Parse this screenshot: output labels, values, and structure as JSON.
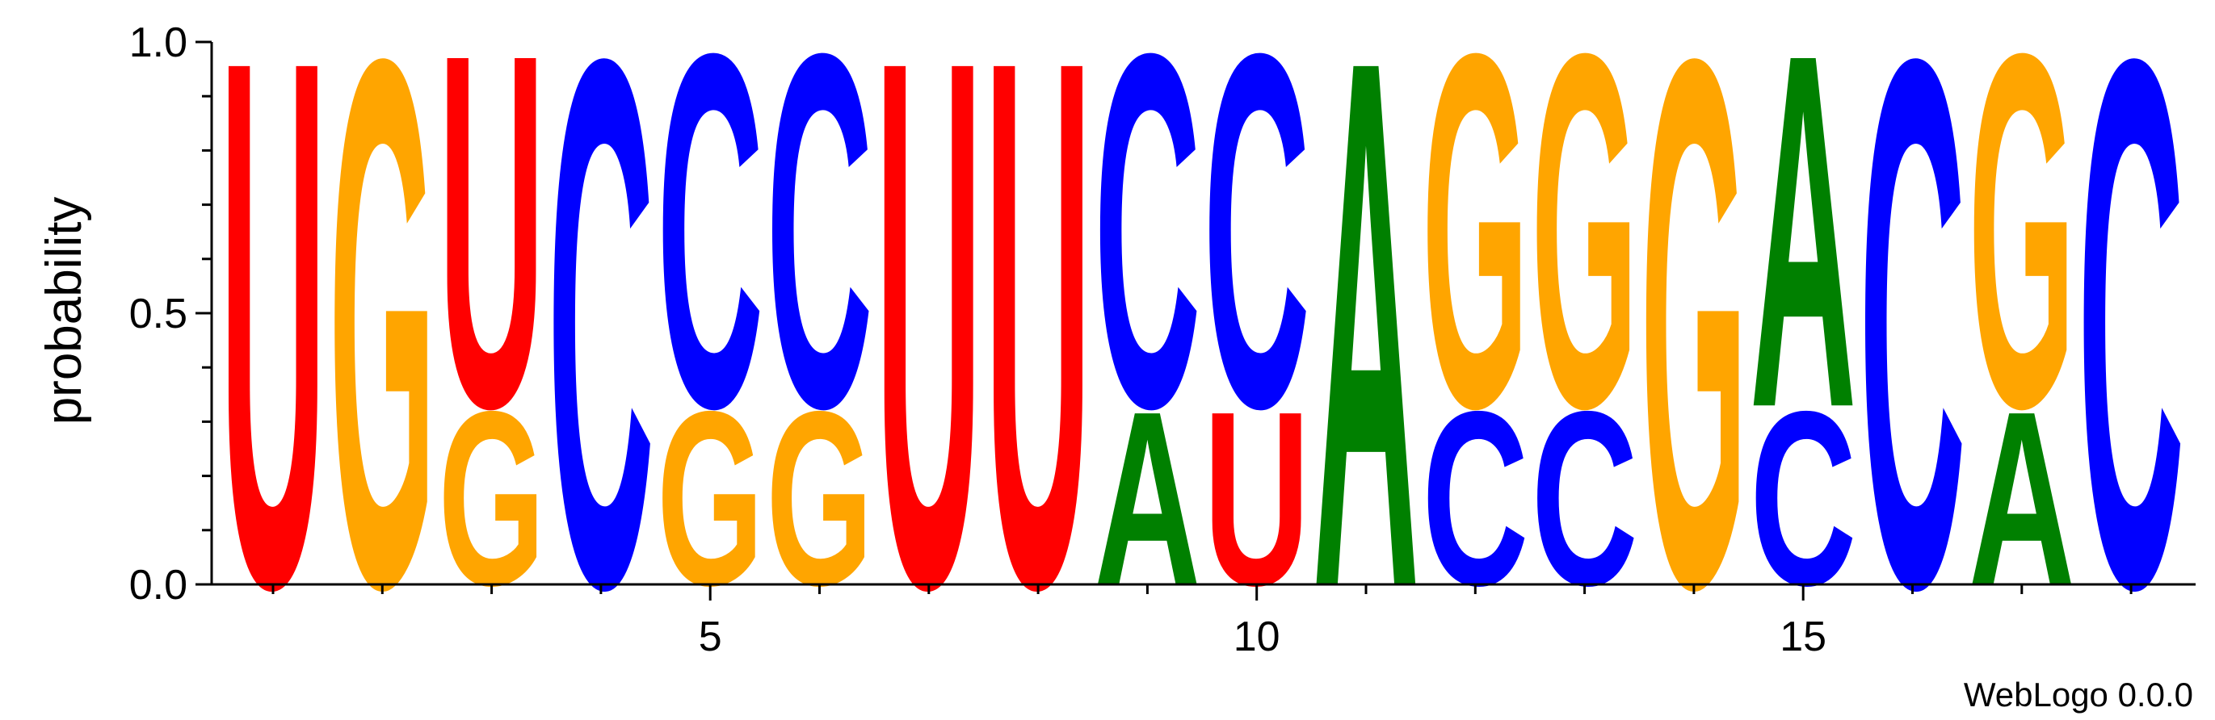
{
  "chart_data": {
    "type": "sequence-logo",
    "ylabel": "probability",
    "ylim": [
      0.0,
      1.0
    ],
    "y_ticks": [
      "0.0",
      "0.5",
      "1.0"
    ],
    "x_ticks": [
      "5",
      "10",
      "15"
    ],
    "x_tick_values": [
      5,
      10,
      15
    ],
    "positions": [
      1,
      2,
      3,
      4,
      5,
      6,
      7,
      8,
      9,
      10,
      11,
      12,
      13,
      14,
      15,
      16,
      17,
      18
    ],
    "stacks": [
      [
        {
          "letter": "U",
          "p": 1.0
        }
      ],
      [
        {
          "letter": "G",
          "p": 1.0
        }
      ],
      [
        {
          "letter": "G",
          "p": 0.33
        },
        {
          "letter": "U",
          "p": 0.67
        }
      ],
      [
        {
          "letter": "C",
          "p": 1.0
        }
      ],
      [
        {
          "letter": "G",
          "p": 0.33
        },
        {
          "letter": "C",
          "p": 0.67
        }
      ],
      [
        {
          "letter": "G",
          "p": 0.33
        },
        {
          "letter": "C",
          "p": 0.67
        }
      ],
      [
        {
          "letter": "U",
          "p": 1.0
        }
      ],
      [
        {
          "letter": "U",
          "p": 1.0
        }
      ],
      [
        {
          "letter": "A",
          "p": 0.33
        },
        {
          "letter": "C",
          "p": 0.67
        }
      ],
      [
        {
          "letter": "U",
          "p": 0.33
        },
        {
          "letter": "C",
          "p": 0.67
        }
      ],
      [
        {
          "letter": "A",
          "p": 1.0
        }
      ],
      [
        {
          "letter": "C",
          "p": 0.33
        },
        {
          "letter": "G",
          "p": 0.67
        }
      ],
      [
        {
          "letter": "C",
          "p": 0.33
        },
        {
          "letter": "G",
          "p": 0.67
        }
      ],
      [
        {
          "letter": "G",
          "p": 1.0
        }
      ],
      [
        {
          "letter": "C",
          "p": 0.33
        },
        {
          "letter": "A",
          "p": 0.67
        }
      ],
      [
        {
          "letter": "C",
          "p": 1.0
        }
      ],
      [
        {
          "letter": "A",
          "p": 0.33
        },
        {
          "letter": "G",
          "p": 0.67
        }
      ],
      [
        {
          "letter": "C",
          "p": 1.0
        }
      ]
    ],
    "colors": {
      "A": "#008000",
      "C": "#0000ff",
      "G": "#ffa500",
      "U": "#ff0000"
    },
    "credit": "WebLogo 0.0.0"
  }
}
